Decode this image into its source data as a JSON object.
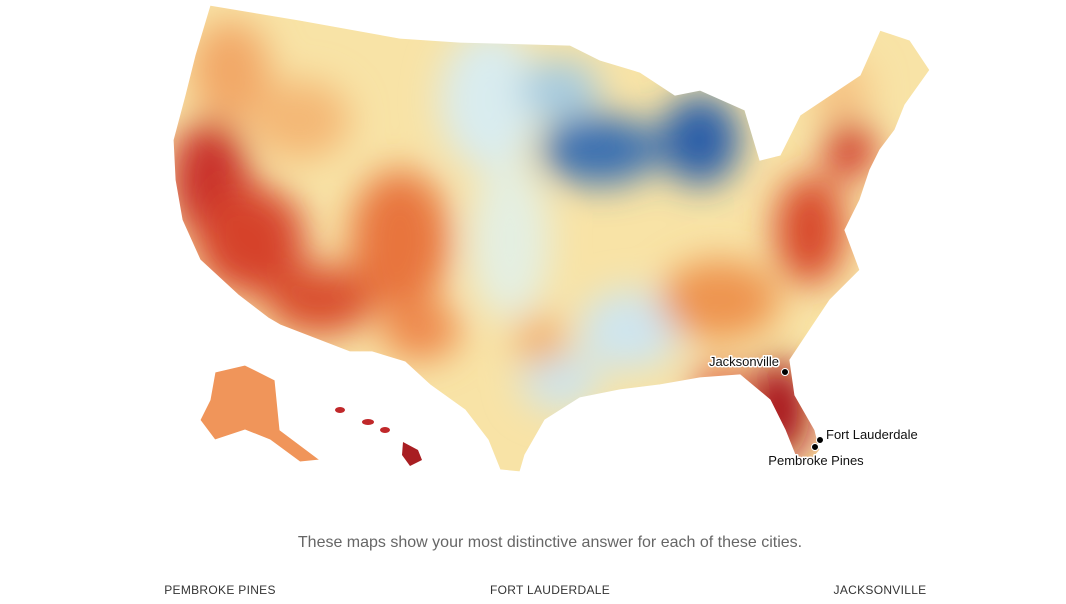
{
  "map": {
    "markers": [
      {
        "label": "Jacksonville"
      },
      {
        "label": "Fort Lauderdale"
      },
      {
        "label": "Pembroke Pines"
      }
    ]
  },
  "caption": "These maps show your most distinctive answer for each of these cities.",
  "columns": [
    "PEMBROKE PINES",
    "FORT LAUDERDALE",
    "JACKSONVILLE"
  ]
}
